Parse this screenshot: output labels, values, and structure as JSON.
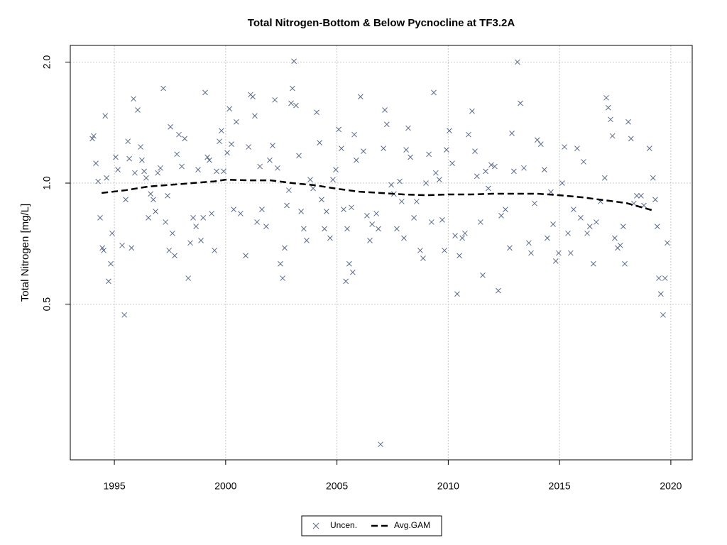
{
  "chart_data": {
    "type": "scatter",
    "title": "Total Nitrogen-Bottom & Below Pycnocline at TF3.2A",
    "y_label": "Total Nitrogen [mg/L]",
    "xlim": [
      1993.02,
      2020.96
    ],
    "xticks": [
      1995,
      2000,
      2005,
      2010,
      2015,
      2020
    ],
    "ylim": [
      0.205,
      2.2
    ],
    "ylog": true,
    "yticks": [
      0.5,
      {
        "value": 1.0,
        "label": "1.0"
      },
      {
        "value": 2.0,
        "label": "2.0"
      }
    ],
    "grid": true,
    "legend": "bottom",
    "series": [
      {
        "name": "Uncen.",
        "type": "scatter",
        "color": "#5a6a8a",
        "x": [
          1994.01,
          1994.07,
          1994.17,
          1994.27,
          1994.36,
          1994.46,
          1994.52,
          1994.59,
          1994.65,
          1994.74,
          1994.84,
          1994.9,
          1995.06,
          1995.16,
          1995.35,
          1995.45,
          1995.51,
          1995.61,
          1995.67,
          1995.77,
          1995.86,
          1995.92,
          1996.05,
          1996.18,
          1996.24,
          1996.34,
          1996.43,
          1996.53,
          1996.63,
          1996.75,
          1996.85,
          1996.95,
          1997.07,
          1997.2,
          1997.3,
          1997.39,
          1997.46,
          1997.52,
          1997.61,
          1997.71,
          1997.81,
          1997.9,
          1998.03,
          1998.16,
          1998.32,
          1998.41,
          1998.54,
          1998.67,
          1998.76,
          1998.89,
          1998.99,
          1999.08,
          1999.18,
          1999.27,
          1999.37,
          1999.5,
          1999.59,
          1999.72,
          1999.81,
          1999.91,
          2000.07,
          2000.17,
          2000.26,
          2000.36,
          2000.48,
          2000.67,
          2000.9,
          2001.03,
          2001.12,
          2001.22,
          2001.31,
          2001.41,
          2001.54,
          2001.63,
          2001.82,
          2001.98,
          2002.11,
          2002.21,
          2002.33,
          2002.46,
          2002.56,
          2002.65,
          2002.75,
          2002.84,
          2002.94,
          2003.0,
          2003.07,
          2003.16,
          2003.29,
          2003.39,
          2003.51,
          2003.64,
          2003.8,
          2003.93,
          2004.09,
          2004.22,
          2004.31,
          2004.44,
          2004.53,
          2004.69,
          2004.82,
          2004.95,
          2005.08,
          2005.2,
          2005.3,
          2005.4,
          2005.46,
          2005.55,
          2005.65,
          2005.71,
          2005.78,
          2005.87,
          2006.06,
          2006.19,
          2006.35,
          2006.48,
          2006.58,
          2006.77,
          2006.86,
          2006.96,
          2007.09,
          2007.15,
          2007.24,
          2007.44,
          2007.56,
          2007.69,
          2007.82,
          2007.91,
          2008.01,
          2008.11,
          2008.2,
          2008.3,
          2008.46,
          2008.58,
          2008.74,
          2008.87,
          2009.0,
          2009.13,
          2009.25,
          2009.35,
          2009.44,
          2009.6,
          2009.73,
          2009.83,
          2009.92,
          2010.05,
          2010.18,
          2010.31,
          2010.4,
          2010.5,
          2010.63,
          2010.75,
          2010.91,
          2011.07,
          2011.2,
          2011.29,
          2011.45,
          2011.55,
          2011.68,
          2011.8,
          2011.93,
          2012.09,
          2012.25,
          2012.38,
          2012.57,
          2012.76,
          2012.86,
          2012.95,
          2013.11,
          2013.24,
          2013.4,
          2013.62,
          2013.72,
          2013.88,
          2014.0,
          2014.16,
          2014.32,
          2014.45,
          2014.61,
          2014.71,
          2014.83,
          2014.96,
          2015.12,
          2015.22,
          2015.38,
          2015.5,
          2015.63,
          2015.79,
          2015.95,
          2016.08,
          2016.24,
          2016.36,
          2016.52,
          2016.65,
          2016.84,
          2017.03,
          2017.1,
          2017.19,
          2017.29,
          2017.38,
          2017.48,
          2017.61,
          2017.73,
          2017.86,
          2017.93,
          2018.09,
          2018.21,
          2018.34,
          2018.47,
          2018.66,
          2018.79,
          2019.04,
          2019.2,
          2019.3,
          2019.39,
          2019.46,
          2019.55,
          2019.65,
          2019.74,
          2019.84
        ],
        "values": [
          1.29,
          1.31,
          1.12,
          1.01,
          0.82,
          0.69,
          0.68,
          1.47,
          1.03,
          0.57,
          0.63,
          0.75,
          1.16,
          1.08,
          0.7,
          0.47,
          0.91,
          1.27,
          1.15,
          0.69,
          1.62,
          1.06,
          1.52,
          1.23,
          1.14,
          1.07,
          1.03,
          0.82,
          0.94,
          0.91,
          0.85,
          1.06,
          1.09,
          1.72,
          0.8,
          0.93,
          0.68,
          1.38,
          0.75,
          0.66,
          1.18,
          1.32,
          1.1,
          1.29,
          0.58,
          0.71,
          0.82,
          0.78,
          1.08,
          0.72,
          0.82,
          1.68,
          1.16,
          1.14,
          0.84,
          0.68,
          1.07,
          1.27,
          1.35,
          1.07,
          1.19,
          1.53,
          1.25,
          0.86,
          1.42,
          0.84,
          0.66,
          1.23,
          1.66,
          1.64,
          1.47,
          0.8,
          1.1,
          0.86,
          0.78,
          1.14,
          1.24,
          1.61,
          1.09,
          0.63,
          0.58,
          0.69,
          0.88,
          0.96,
          1.58,
          1.72,
          2.01,
          1.56,
          1.17,
          0.85,
          0.77,
          0.72,
          1.02,
          0.97,
          1.5,
          1.26,
          0.91,
          0.77,
          0.85,
          0.73,
          1.02,
          1.08,
          1.36,
          1.22,
          0.86,
          0.57,
          0.77,
          0.63,
          0.87,
          0.6,
          1.32,
          1.14,
          1.64,
          1.2,
          0.83,
          0.72,
          0.79,
          0.84,
          0.77,
          0.224,
          1.22,
          1.52,
          1.4,
          0.99,
          0.94,
          0.77,
          1.01,
          0.9,
          0.73,
          1.21,
          1.37,
          1.16,
          0.82,
          0.9,
          0.68,
          0.65,
          1.0,
          1.18,
          0.8,
          1.68,
          1.06,
          1.02,
          0.81,
          0.68,
          1.21,
          1.35,
          1.12,
          0.74,
          0.53,
          0.66,
          0.73,
          0.75,
          1.32,
          1.51,
          1.2,
          1.04,
          0.8,
          0.59,
          1.07,
          0.97,
          1.11,
          1.1,
          0.54,
          0.83,
          0.86,
          0.69,
          1.33,
          1.07,
          2.0,
          1.58,
          1.09,
          0.71,
          0.67,
          0.89,
          1.28,
          1.25,
          1.08,
          0.73,
          0.95,
          0.79,
          0.64,
          0.67,
          1.0,
          1.23,
          0.75,
          0.67,
          0.86,
          1.22,
          0.82,
          1.13,
          0.75,
          0.78,
          0.63,
          0.8,
          0.9,
          1.03,
          1.63,
          1.54,
          1.44,
          1.31,
          0.73,
          0.69,
          0.7,
          0.78,
          0.63,
          1.42,
          1.29,
          0.89,
          0.93,
          0.93,
          0.88,
          1.22,
          1.03,
          0.91,
          0.78,
          0.58,
          0.53,
          0.47,
          0.58,
          0.71
        ]
      },
      {
        "name": "Avg.GAM",
        "type": "line",
        "color": "#000000",
        "x": [
          1994.43,
          1995.5,
          1996.5,
          1997.5,
          1998.5,
          1999.5,
          2000,
          2001,
          2002,
          2003,
          2004,
          2005,
          2006,
          2007,
          2008,
          2009,
          2010,
          2011,
          2012,
          2013,
          2014,
          2015,
          2016,
          2017,
          2018,
          2019.27
        ],
        "values": [
          0.945,
          0.96,
          0.98,
          0.99,
          1.0,
          1.01,
          1.02,
          1.016,
          1.016,
          1.0,
          0.988,
          0.968,
          0.952,
          0.945,
          0.937,
          0.933,
          0.937,
          0.937,
          0.941,
          0.941,
          0.941,
          0.933,
          0.922,
          0.907,
          0.892,
          0.853
        ]
      }
    ]
  }
}
